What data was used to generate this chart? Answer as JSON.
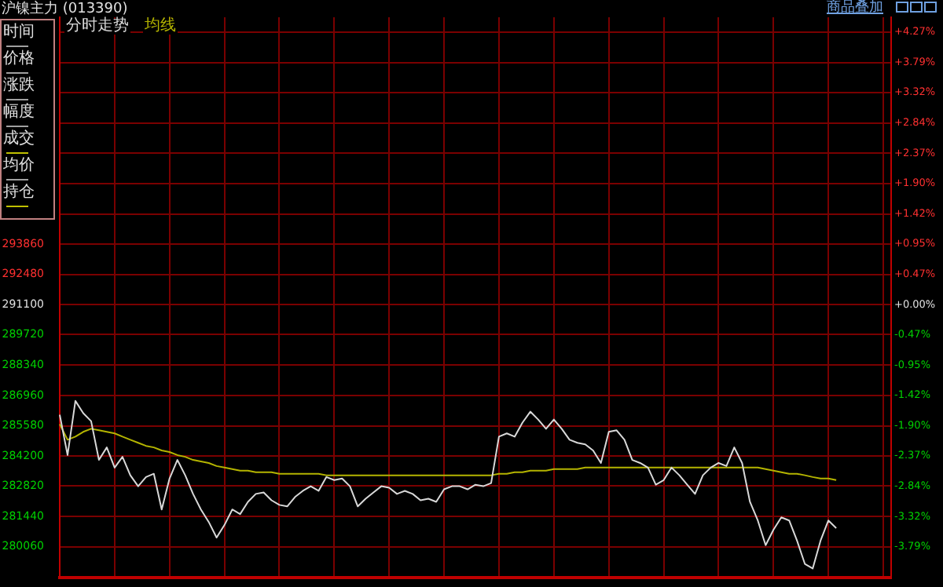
{
  "chart_data": {
    "type": "line",
    "title": "沪镍主力 (013390)",
    "annotations": [
      "商品叠加",
      "时间",
      "价格",
      "涨跌",
      "幅度",
      "成交",
      "均价",
      "持仓"
    ],
    "categories": [
      null,
      null,
      null,
      null,
      null,
      null,
      null,
      null,
      null,
      null,
      null,
      null,
      null,
      null,
      null,
      null,
      null,
      null,
      null,
      null,
      null,
      null,
      null,
      null,
      null,
      null,
      null,
      null,
      null,
      null,
      null,
      null,
      null,
      null,
      null,
      null,
      null,
      null,
      null,
      null,
      null,
      null,
      null,
      null,
      null,
      null,
      null,
      null,
      null,
      null,
      null,
      null,
      null,
      null,
      null,
      null,
      null,
      null,
      null,
      null,
      null,
      null,
      null,
      null,
      null,
      null,
      null,
      null,
      null,
      null,
      null,
      null,
      null,
      null,
      null,
      null,
      null,
      null,
      null,
      null,
      null,
      null,
      null,
      null,
      null,
      null,
      null,
      null,
      null,
      null,
      null,
      null,
      null,
      null,
      null,
      null,
      null,
      null,
      null,
      null,
      null,
      null,
      null,
      null,
      null,
      null,
      null
    ],
    "series": [
      {
        "name": "分时走势",
        "color": "#d8d8d8",
        "values": [
          286080,
          284240,
          286710,
          286150,
          285790,
          284020,
          284590,
          283670,
          284160,
          283320,
          282820,
          283240,
          283390,
          281760,
          283170,
          284020,
          283320,
          282470,
          281760,
          281190,
          280480,
          281050,
          281760,
          281550,
          282110,
          282470,
          282540,
          282180,
          281970,
          281900,
          282330,
          282610,
          282820,
          282610,
          283240,
          283100,
          283170,
          282820,
          281900,
          282250,
          282540,
          282820,
          282750,
          282470,
          282610,
          282470,
          282180,
          282250,
          282110,
          282680,
          282820,
          282820,
          282680,
          282890,
          282820,
          282960,
          285080,
          285230,
          285080,
          285720,
          286220,
          285860,
          285440,
          285860,
          285440,
          284940,
          284800,
          284730,
          284450,
          283880,
          285300,
          285370,
          284940,
          284020,
          283880,
          283670,
          282890,
          283100,
          283670,
          283320,
          282890,
          282470,
          283320,
          283670,
          283880,
          283740,
          284590,
          283880,
          282110,
          281260,
          280130,
          280840,
          281400,
          281260,
          280340,
          279280,
          279070,
          280340,
          281260,
          280910,
          null,
          null,
          null,
          null,
          null,
          null,
          null
        ]
      },
      {
        "name": "均线",
        "color": "#b4b400",
        "values": [
          285650,
          284940,
          285080,
          285300,
          285440,
          285370,
          285300,
          285230,
          285080,
          284940,
          284800,
          284660,
          284590,
          284450,
          284380,
          284240,
          284160,
          284020,
          283950,
          283880,
          283740,
          283670,
          283600,
          283530,
          283530,
          283460,
          283460,
          283460,
          283390,
          283390,
          283390,
          283390,
          283390,
          283390,
          283320,
          283320,
          283320,
          283320,
          283320,
          283320,
          283320,
          283320,
          283320,
          283320,
          283320,
          283320,
          283320,
          283320,
          283320,
          283320,
          283320,
          283320,
          283320,
          283320,
          283320,
          283320,
          283390,
          283390,
          283460,
          283460,
          283530,
          283530,
          283530,
          283600,
          283600,
          283600,
          283600,
          283670,
          283670,
          283670,
          283670,
          283670,
          283670,
          283670,
          283670,
          283670,
          283670,
          283670,
          283670,
          283670,
          283670,
          283670,
          283670,
          283670,
          283670,
          283670,
          283670,
          283670,
          283670,
          283670,
          283600,
          283530,
          283460,
          283390,
          283390,
          283320,
          283240,
          283170,
          283170,
          283100,
          null,
          null,
          null,
          null,
          null,
          null,
          null
        ]
      }
    ],
    "ylim": [
      278670,
      304200
    ],
    "yticks": [
      293860,
      292480,
      291100,
      289720,
      288340,
      286960,
      285580,
      284200,
      282820,
      281440,
      280060
    ],
    "y2lim": [
      -4.27,
      4.5
    ],
    "y2ticks": [
      {
        "value": 4.27,
        "label": "+4.27%"
      },
      {
        "value": 3.79,
        "label": "+3.79%"
      },
      {
        "value": 3.32,
        "label": "+3.32%"
      },
      {
        "value": 2.84,
        "label": "+2.84%"
      },
      {
        "value": 2.37,
        "label": "+2.37%"
      },
      {
        "value": 1.9,
        "label": "+1.90%"
      },
      {
        "value": 1.42,
        "label": "+1.42%"
      },
      {
        "value": 0.95,
        "label": "+0.95%"
      },
      {
        "value": 0.47,
        "label": "+0.47%"
      },
      {
        "value": 0,
        "label": "+0.00%"
      },
      {
        "value": -0.47,
        "label": "-0.47%"
      },
      {
        "value": -0.95,
        "label": "-0.95%"
      },
      {
        "value": -1.42,
        "label": "-1.42%"
      },
      {
        "value": -1.9,
        "label": "-1.90%"
      },
      {
        "value": -2.37,
        "label": "-2.37%"
      },
      {
        "value": -2.84,
        "label": "-2.84%"
      },
      {
        "value": -3.32,
        "label": "-3.32%"
      },
      {
        "value": -3.79,
        "label": "-3.79%"
      }
    ],
    "grid": true,
    "legend": "top left",
    "tick_labels": "y"
  }
}
